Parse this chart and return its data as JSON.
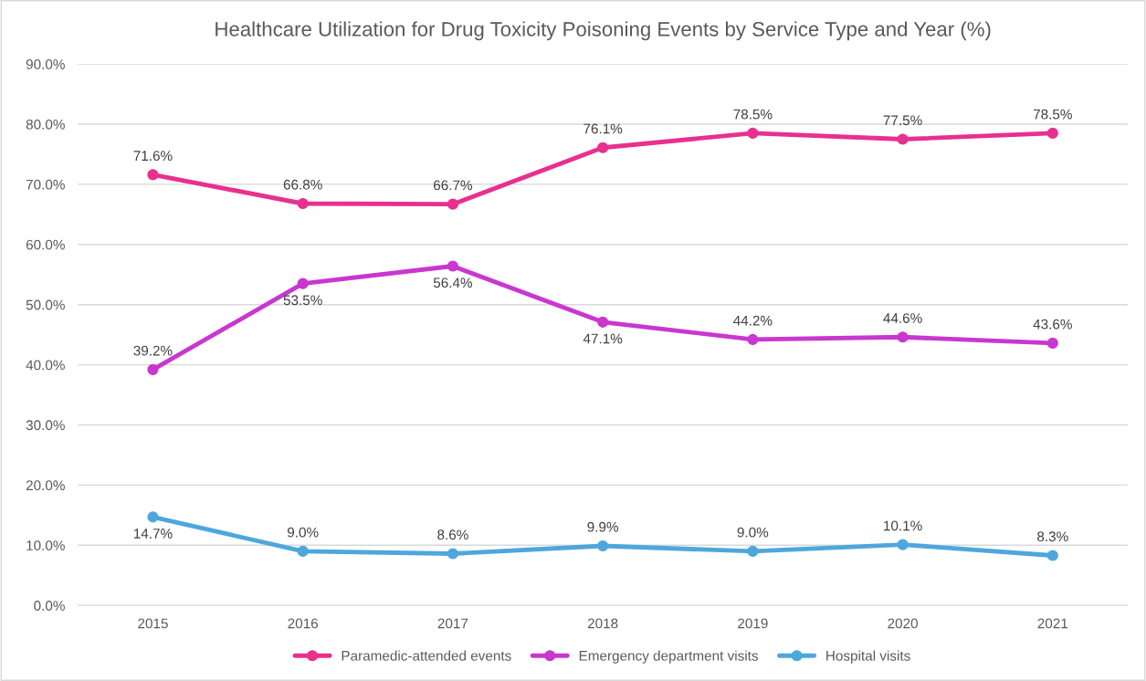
{
  "chart_data": {
    "type": "line",
    "title": "Healthcare Utilization for Drug Toxicity Poisoning Events by Service Type and Year (%)",
    "categories": [
      "2015",
      "2016",
      "2017",
      "2018",
      "2019",
      "2020",
      "2021"
    ],
    "series": [
      {
        "name": "Paramedic-attended events",
        "color": "#e8308f",
        "values": [
          71.6,
          66.8,
          66.7,
          76.1,
          78.5,
          77.5,
          78.5
        ],
        "value_labels": [
          "71.6%",
          "66.8%",
          "66.7%",
          "76.1%",
          "78.5%",
          "77.5%",
          "78.5%"
        ]
      },
      {
        "name": "Emergency department visits",
        "color": "#c837cf",
        "values": [
          39.2,
          53.5,
          56.4,
          47.1,
          44.2,
          44.6,
          43.6
        ],
        "value_labels": [
          "39.2%",
          "53.5%",
          "56.4%",
          "47.1%",
          "44.2%",
          "44.6%",
          "43.6%"
        ]
      },
      {
        "name": "Hospital visits",
        "color": "#4ea7dc",
        "values": [
          14.7,
          9.0,
          8.6,
          9.9,
          9.0,
          10.1,
          8.3
        ],
        "value_labels": [
          "14.7%",
          "9.0%",
          "8.6%",
          "9.9%",
          "9.0%",
          "10.1%",
          "8.3%"
        ]
      }
    ],
    "ylim": [
      0,
      90
    ],
    "yticks": [
      {
        "value": 0,
        "label": "0.0%"
      },
      {
        "value": 10,
        "label": "10.0%"
      },
      {
        "value": 20,
        "label": "20.0%"
      },
      {
        "value": 30,
        "label": "30.0%"
      },
      {
        "value": 40,
        "label": "40.0%"
      },
      {
        "value": 50,
        "label": "50.0%"
      },
      {
        "value": 60,
        "label": "60.0%"
      },
      {
        "value": 70,
        "label": "70.0%"
      },
      {
        "value": 80,
        "label": "80.0%"
      },
      {
        "value": 90,
        "label": "90.0%"
      }
    ],
    "grid": "y",
    "legend": "bottom",
    "marker": "circle",
    "line_style": "solid"
  }
}
